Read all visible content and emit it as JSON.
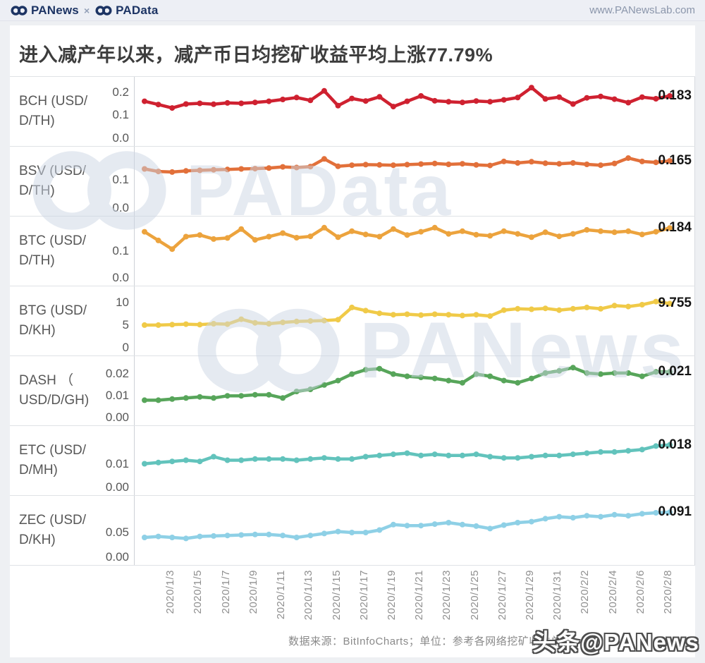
{
  "header": {
    "brand_left": "PANews",
    "brand_separator": "×",
    "brand_right": "PAData",
    "url": "www.PANewsLab.com"
  },
  "title": "进入减产年以来，减产币日均挖矿收益平均上涨77.79%",
  "footer": {
    "source_note": "数据来源：BitInfoCharts；单位：参考各网络挖矿收益单位"
  },
  "watermarks": {
    "center_upper": "PAData",
    "center_lower": "PANews",
    "bottom_right": "头条@PANews"
  },
  "chart_data": {
    "type": "line",
    "title": "进入减产年以来，减产币日均挖矿收益平均上涨77.79%",
    "xlabel": "",
    "ylabel": "",
    "grid": false,
    "legend_position": "none",
    "x": [
      "2020/1/1",
      "2020/1/2",
      "2020/1/3",
      "2020/1/4",
      "2020/1/5",
      "2020/1/6",
      "2020/1/7",
      "2020/1/8",
      "2020/1/9",
      "2020/1/10",
      "2020/1/11",
      "2020/1/12",
      "2020/1/13",
      "2020/1/14",
      "2020/1/15",
      "2020/1/16",
      "2020/1/17",
      "2020/1/18",
      "2020/1/19",
      "2020/1/20",
      "2020/1/21",
      "2020/1/22",
      "2020/1/23",
      "2020/1/24",
      "2020/1/25",
      "2020/1/26",
      "2020/1/27",
      "2020/1/28",
      "2020/1/29",
      "2020/1/30",
      "2020/1/31",
      "2020/2/1",
      "2020/2/2",
      "2020/2/3",
      "2020/2/4",
      "2020/2/5",
      "2020/2/6",
      "2020/2/7",
      "2020/2/8"
    ],
    "x_tick_labels": [
      "2020/1/3",
      "2020/1/5",
      "2020/1/7",
      "2020/1/9",
      "2020/1/11",
      "2020/1/13",
      "2020/1/15",
      "2020/1/17",
      "2020/1/19",
      "2020/1/21",
      "2020/1/23",
      "2020/1/25",
      "2020/1/27",
      "2020/1/29",
      "2020/1/31",
      "2020/2/2",
      "2020/2/4",
      "2020/2/6",
      "2020/2/8"
    ],
    "series": [
      {
        "name": "BCH",
        "label_lines": [
          "BCH (USD/",
          "D/TH)"
        ],
        "unit": "USD/D/TH",
        "color": "#cf2130",
        "end_label": "0.183",
        "yticks": [
          "0.2",
          "0.1",
          "0.0"
        ],
        "ytick_values": [
          0.2,
          0.1,
          0.0
        ],
        "ylim": [
          0,
          0.235
        ],
        "ymax": 0.235,
        "values": [
          0.16,
          0.146,
          0.131,
          0.148,
          0.151,
          0.147,
          0.153,
          0.151,
          0.155,
          0.16,
          0.168,
          0.176,
          0.164,
          0.205,
          0.141,
          0.172,
          0.161,
          0.179,
          0.137,
          0.16,
          0.183,
          0.162,
          0.158,
          0.155,
          0.161,
          0.158,
          0.166,
          0.176,
          0.219,
          0.17,
          0.178,
          0.148,
          0.175,
          0.181,
          0.169,
          0.154,
          0.178,
          0.171,
          0.183
        ]
      },
      {
        "name": "BSV",
        "label_lines": [
          "BSV (USD/",
          "D/TH)"
        ],
        "unit": "USD/D/TH",
        "color": "#e2703a",
        "end_label": "0.165",
        "yticks": [
          "0.1",
          "0.0"
        ],
        "ytick_values": [
          0.1,
          0.0
        ],
        "ylim": [
          0,
          0.19
        ],
        "ymax": 0.19,
        "values": [
          0.137,
          0.128,
          0.126,
          0.13,
          0.132,
          0.134,
          0.135,
          0.137,
          0.138,
          0.14,
          0.144,
          0.142,
          0.145,
          0.172,
          0.146,
          0.15,
          0.152,
          0.151,
          0.15,
          0.152,
          0.154,
          0.156,
          0.153,
          0.155,
          0.151,
          0.149,
          0.163,
          0.158,
          0.162,
          0.157,
          0.155,
          0.158,
          0.153,
          0.15,
          0.156,
          0.175,
          0.163,
          0.16,
          0.165
        ]
      },
      {
        "name": "BTC",
        "label_lines": [
          "BTC (USD/",
          "D/TH)"
        ],
        "unit": "USD/D/TH",
        "color": "#eca33d",
        "end_label": "0.184",
        "yticks": [
          "0.1",
          "0.0"
        ],
        "ytick_values": [
          0.1,
          0.0
        ],
        "ylim": [
          0,
          0.2
        ],
        "ymax": 0.2,
        "values": [
          0.17,
          0.138,
          0.106,
          0.152,
          0.158,
          0.143,
          0.147,
          0.18,
          0.14,
          0.152,
          0.165,
          0.148,
          0.153,
          0.185,
          0.15,
          0.172,
          0.16,
          0.152,
          0.18,
          0.158,
          0.17,
          0.185,
          0.162,
          0.172,
          0.159,
          0.155,
          0.172,
          0.162,
          0.15,
          0.168,
          0.153,
          0.162,
          0.177,
          0.172,
          0.168,
          0.172,
          0.16,
          0.17,
          0.184
        ]
      },
      {
        "name": "BTG",
        "label_lines": [
          "BTG (USD/",
          "D/KH)"
        ],
        "unit": "USD/D/KH",
        "color": "#f0ca48",
        "end_label": "9.755",
        "yticks": [
          "10",
          "5",
          "0"
        ],
        "ytick_values": [
          10,
          5,
          0
        ],
        "ylim": [
          0,
          12
        ],
        "ymax": 12,
        "values": [
          5.0,
          5.0,
          5.1,
          5.2,
          5.1,
          5.3,
          5.2,
          6.3,
          5.5,
          5.3,
          5.6,
          5.8,
          5.9,
          6.0,
          6.2,
          8.9,
          8.2,
          7.6,
          7.3,
          7.4,
          7.2,
          7.4,
          7.3,
          7.1,
          7.3,
          7.0,
          8.3,
          8.6,
          8.5,
          8.7,
          8.3,
          8.6,
          8.9,
          8.6,
          9.3,
          9.1,
          9.5,
          10.2,
          9.755
        ]
      },
      {
        "name": "DASH",
        "label_lines": [
          "DASH （",
          "USD/D/GH)"
        ],
        "unit": "USD/D/GH",
        "color": "#57a55a",
        "end_label": "0.021",
        "yticks": [
          "0.02",
          "0.01",
          "0.00"
        ],
        "ytick_values": [
          0.02,
          0.01,
          0.0
        ],
        "ylim": [
          0,
          0.025
        ],
        "ymax": 0.025,
        "values": [
          0.008,
          0.008,
          0.0085,
          0.009,
          0.0095,
          0.009,
          0.01,
          0.01,
          0.0105,
          0.0105,
          0.009,
          0.012,
          0.013,
          0.015,
          0.017,
          0.02,
          0.022,
          0.0225,
          0.02,
          0.019,
          0.0185,
          0.018,
          0.017,
          0.016,
          0.02,
          0.019,
          0.017,
          0.016,
          0.018,
          0.0205,
          0.0215,
          0.023,
          0.0205,
          0.02,
          0.0205,
          0.0205,
          0.019,
          0.021,
          0.021
        ]
      },
      {
        "name": "ETC",
        "label_lines": [
          "ETC (USD/",
          "D/MH)"
        ],
        "unit": "USD/D/MH",
        "color": "#62c3bc",
        "end_label": "0.018",
        "yticks": [
          "0.01",
          "0.00"
        ],
        "ytick_values": [
          0.01,
          0.0
        ],
        "ylim": [
          0,
          0.023
        ],
        "ymax": 0.023,
        "values": [
          0.01,
          0.0105,
          0.011,
          0.0115,
          0.011,
          0.013,
          0.0115,
          0.0115,
          0.012,
          0.012,
          0.012,
          0.0115,
          0.012,
          0.0125,
          0.012,
          0.012,
          0.013,
          0.0135,
          0.014,
          0.0145,
          0.0135,
          0.014,
          0.0135,
          0.0135,
          0.014,
          0.013,
          0.0125,
          0.0125,
          0.013,
          0.0135,
          0.0135,
          0.014,
          0.0145,
          0.015,
          0.015,
          0.0155,
          0.016,
          0.0175,
          0.018
        ]
      },
      {
        "name": "ZEC",
        "label_lines": [
          "ZEC (USD/",
          "D/KH)"
        ],
        "unit": "USD/D/KH",
        "color": "#8ed0e6",
        "end_label": "0.091",
        "yticks": [
          "0.05",
          "0.00"
        ],
        "ytick_values": [
          0.05,
          0.0
        ],
        "ylim": [
          0,
          0.11
        ],
        "ymax": 0.11,
        "values": [
          0.04,
          0.042,
          0.04,
          0.038,
          0.042,
          0.043,
          0.044,
          0.045,
          0.046,
          0.046,
          0.044,
          0.04,
          0.044,
          0.048,
          0.052,
          0.05,
          0.05,
          0.055,
          0.066,
          0.064,
          0.064,
          0.067,
          0.07,
          0.066,
          0.063,
          0.058,
          0.065,
          0.07,
          0.072,
          0.078,
          0.082,
          0.08,
          0.084,
          0.082,
          0.086,
          0.084,
          0.088,
          0.09,
          0.091
        ]
      }
    ]
  }
}
